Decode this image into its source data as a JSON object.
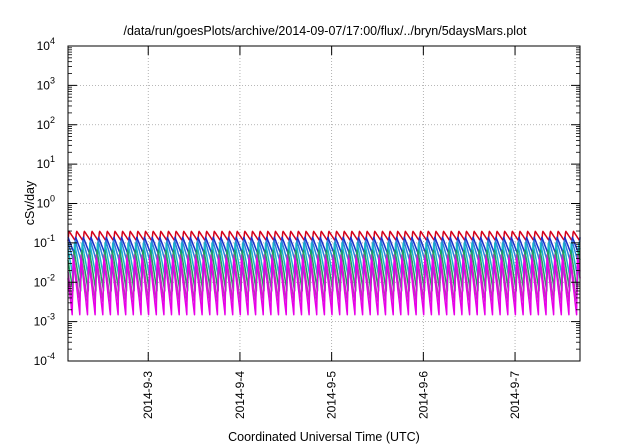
{
  "chart_data": {
    "type": "line",
    "title": "/data/run/goesPlots/archive/2014-09-07/17:00/flux/../bryn/5daysMars.plot",
    "xlabel": "Coordinated Universal Time (UTC)",
    "ylabel": "cSv/day",
    "x_range": [
      "2014-09-02 03:00",
      "2014-09-07 17:00"
    ],
    "x_ticks": [
      "2014-9-3",
      "2014-9-4",
      "2014-9-5",
      "2014-9-6",
      "2014-9-7"
    ],
    "y_scale": "log",
    "ylim": [
      0.0001,
      10000
    ],
    "y_ticks": [
      {
        "base": "10",
        "exp": "-4"
      },
      {
        "base": "10",
        "exp": "-3"
      },
      {
        "base": "10",
        "exp": "-2"
      },
      {
        "base": "10",
        "exp": "-1"
      },
      {
        "base": "10",
        "exp": "0"
      },
      {
        "base": "10",
        "exp": "1"
      },
      {
        "base": "10",
        "exp": "2"
      },
      {
        "base": "10",
        "exp": "3"
      },
      {
        "base": "10",
        "exp": "4"
      }
    ],
    "grid": true,
    "legend": "none",
    "cycle_hours": 2,
    "series": [
      {
        "color": "#d4001a",
        "peak": 0.2,
        "trough": 0.11,
        "phase_hours": 0.0
      },
      {
        "color": "#1c2fc8",
        "peak": 0.14,
        "trough": 0.05,
        "phase_hours": 0.25
      },
      {
        "color": "#2a7fe0",
        "peak": 0.12,
        "trough": 0.03,
        "phase_hours": 0.4
      },
      {
        "color": "#18b8c8",
        "peak": 0.1,
        "trough": 0.012,
        "phase_hours": 0.55
      },
      {
        "color": "#20a060",
        "peak": 0.07,
        "trough": 0.006,
        "phase_hours": 0.7
      },
      {
        "color": "#b040b0",
        "peak": 0.05,
        "trough": 0.003,
        "phase_hours": 0.85
      },
      {
        "color": "#e800e8",
        "peak": 0.045,
        "trough": 0.0015,
        "phase_hours": 0.9
      }
    ]
  }
}
